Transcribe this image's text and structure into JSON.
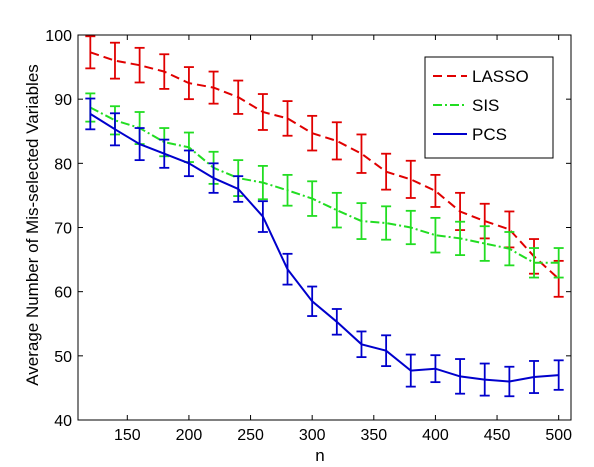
{
  "chart_data": {
    "type": "line",
    "xlabel": "n",
    "ylabel": "Average Number of Mis-selected Variables",
    "xlim": [
      110,
      510
    ],
    "ylim": [
      40,
      100
    ],
    "xticks": [
      150,
      200,
      250,
      300,
      350,
      400,
      450,
      500
    ],
    "yticks": [
      40,
      50,
      60,
      70,
      80,
      90,
      100
    ],
    "grid": false,
    "legend_position": "top-right",
    "x": [
      120,
      140,
      160,
      180,
      200,
      220,
      240,
      260,
      280,
      300,
      320,
      340,
      360,
      380,
      400,
      420,
      440,
      460,
      480,
      500
    ],
    "series": [
      {
        "name": "LASSO",
        "color": "#e00000",
        "line_style": "dashed",
        "values": [
          97.3,
          96.0,
          95.3,
          94.3,
          92.5,
          91.8,
          90.3,
          88.0,
          87.0,
          84.7,
          83.5,
          81.5,
          78.7,
          77.5,
          75.7,
          72.5,
          71.0,
          69.7,
          65.5,
          62.0
        ],
        "error": [
          2.5,
          2.8,
          2.7,
          2.7,
          2.5,
          2.5,
          2.6,
          2.8,
          2.7,
          2.7,
          2.9,
          3.0,
          2.8,
          2.9,
          2.5,
          2.9,
          2.7,
          2.8,
          2.7,
          2.8
        ]
      },
      {
        "name": "SIS",
        "color": "#22dd22",
        "line_style": "dash-dot",
        "values": [
          88.7,
          86.7,
          85.5,
          83.3,
          82.5,
          79.3,
          77.7,
          77.0,
          75.8,
          74.5,
          72.7,
          71.0,
          70.7,
          70.0,
          68.8,
          68.3,
          67.5,
          66.7,
          64.5,
          64.5
        ],
        "error": [
          2.2,
          2.2,
          2.5,
          2.2,
          2.3,
          2.5,
          2.8,
          2.6,
          2.4,
          2.7,
          2.7,
          2.8,
          2.6,
          2.6,
          2.7,
          2.6,
          2.7,
          2.6,
          2.3,
          2.3
        ]
      },
      {
        "name": "PCS",
        "color": "#0000cc",
        "line_style": "solid",
        "values": [
          87.7,
          85.3,
          83.0,
          81.5,
          80.0,
          77.7,
          76.0,
          71.7,
          63.5,
          58.5,
          55.3,
          51.8,
          50.8,
          47.7,
          48.0,
          46.8,
          46.3,
          46.0,
          46.7,
          47.0
        ],
        "error": [
          2.4,
          2.5,
          2.5,
          2.2,
          2.0,
          2.3,
          2.0,
          2.4,
          2.4,
          2.3,
          2.0,
          2.0,
          2.4,
          2.5,
          2.1,
          2.7,
          2.5,
          2.3,
          2.5,
          2.3
        ]
      }
    ]
  }
}
